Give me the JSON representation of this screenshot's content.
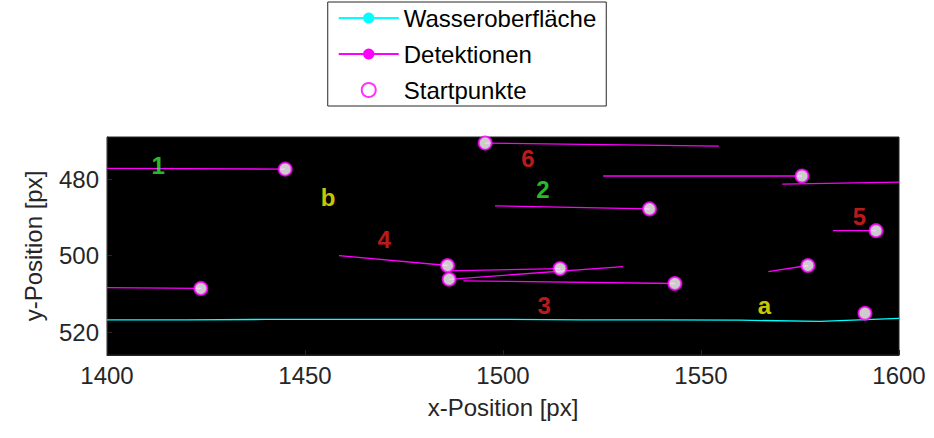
{
  "chart_data": {
    "type": "line",
    "x_label": "x-Position [px]",
    "y_label": "y-Position [px]",
    "xlim": [
      1400,
      1600
    ],
    "xticks": [
      1400,
      1450,
      1500,
      1550,
      1600
    ],
    "ylim": [
      526,
      469
    ],
    "yticks": [
      480,
      500,
      520
    ],
    "grid": false,
    "legend": "top",
    "series": [
      {
        "name": "Wasseroberfläche",
        "type": "line",
        "color": "#00ffff",
        "line_style": "solid",
        "x": [
          1400,
          1420,
          1440,
          1460,
          1480,
          1500,
          1520,
          1540,
          1560,
          1580,
          1600
        ],
        "y": [
          516.8,
          516.8,
          516.7,
          516.7,
          516.7,
          516.7,
          516.8,
          516.8,
          516.9,
          517.2,
          516.4
        ]
      },
      {
        "name": "Detektionen",
        "type": "line",
        "color": "#ff00ff",
        "line_style": "solid",
        "segments": [
          [
            [
              1445,
              477.4
            ],
            [
              1400,
              477.2
            ]
          ],
          [
            [
              1537,
              487.8
            ],
            [
              1498,
              487.0
            ]
          ],
          [
            [
              1495.5,
              470.6
            ],
            [
              1554.5,
              471.4
            ]
          ],
          [
            [
              1575.5,
              479.2
            ],
            [
              1525.3,
              479.2
            ]
          ],
          [
            [
              1600,
              480.8
            ],
            [
              1570.5,
              481.3
            ]
          ],
          [
            [
              1594.2,
              493.5
            ],
            [
              1583.3,
              493.5
            ]
          ],
          [
            [
              1486,
              502.6
            ],
            [
              1458.6,
              500.0
            ]
          ],
          [
            [
              1514.4,
              503.4
            ],
            [
              1486,
              504.0
            ]
          ],
          [
            [
              1486.4,
              506.2
            ],
            [
              1530.3,
              502.9
            ]
          ],
          [
            [
              1543.4,
              507.3
            ],
            [
              1490,
              506.6
            ]
          ],
          [
            [
              1423.7,
              508.6
            ],
            [
              1400,
              508.4
            ]
          ],
          [
            [
              1577,
              502.6
            ],
            [
              1567,
              504.2
            ]
          ]
        ]
      },
      {
        "name": "Startpunkte",
        "type": "scatter",
        "color": "#ff00ff",
        "marker": "circle",
        "x": [
          1445,
          1537,
          1495.5,
          1575.5,
          1594.2,
          1486,
          1514.4,
          1486.4,
          1543.4,
          1423.7,
          1577,
          1591.4
        ],
        "y": [
          477.4,
          487.8,
          470.6,
          479.2,
          493.5,
          502.6,
          503.4,
          506.2,
          507.3,
          508.6,
          502.6,
          515.1
        ]
      }
    ],
    "annotations": [
      {
        "text": "1",
        "x": 1412.9,
        "y": 476.4,
        "color": "#33ee33"
      },
      {
        "text": "2",
        "x": 1510.1,
        "y": 482.6,
        "color": "#33ee33"
      },
      {
        "text": "3",
        "x": 1510.4,
        "y": 513.0,
        "color": "#ee2222"
      },
      {
        "text": "4",
        "x": 1470.0,
        "y": 495.8,
        "color": "#ee2222"
      },
      {
        "text": "5",
        "x": 1590.0,
        "y": 489.9,
        "color": "#ee2222"
      },
      {
        "text": "6",
        "x": 1506.3,
        "y": 474.5,
        "color": "#ee2222"
      },
      {
        "text": "a",
        "x": 1566.0,
        "y": 513.0,
        "color": "#ffff00"
      },
      {
        "text": "b",
        "x": 1455.8,
        "y": 484.9,
        "color": "#ffff00"
      }
    ]
  }
}
